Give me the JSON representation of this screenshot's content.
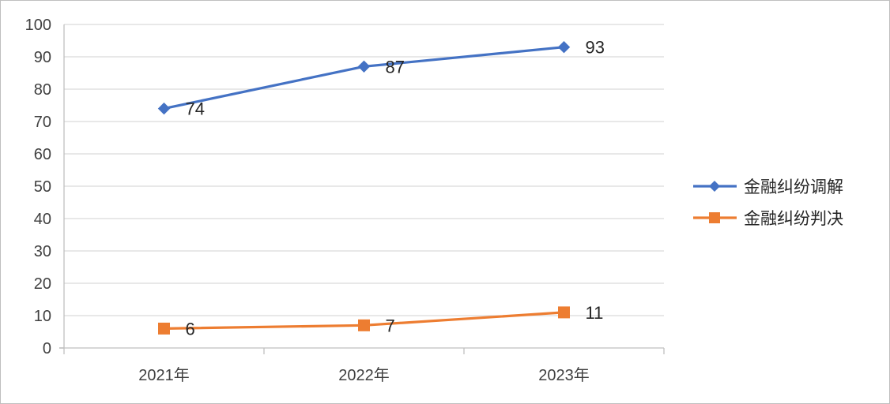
{
  "chart_data": {
    "type": "line",
    "categories": [
      "2021年",
      "2022年",
      "2023年"
    ],
    "ylim": [
      0,
      100
    ],
    "yticks": [
      0,
      10,
      20,
      30,
      40,
      50,
      60,
      70,
      80,
      90,
      100
    ],
    "grid": true,
    "legend_position": "right",
    "series": [
      {
        "name": "金融纠纷调解",
        "values": [
          74,
          87,
          93
        ],
        "color": "#4472C4",
        "marker": "diamond"
      },
      {
        "name": "金融纠纷判决",
        "values": [
          6,
          7,
          11
        ],
        "color": "#ED7D31",
        "marker": "square"
      }
    ]
  }
}
